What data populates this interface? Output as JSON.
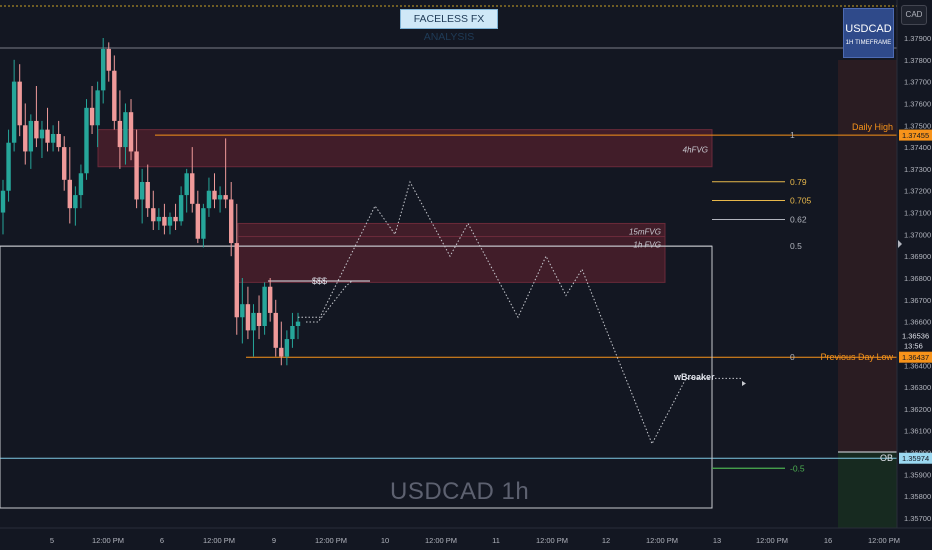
{
  "header": {
    "title_box": "FACELESS FX ANALYSIS",
    "symbol_badge": {
      "symbol": "USDCAD",
      "timeframe": "1H TIMEFRAME"
    },
    "currency_button": "CAD"
  },
  "watermark": "USDCAD 1h",
  "colors": {
    "background": "#131722",
    "bull": "#26a69a",
    "bear": "#ef9a9a",
    "fvg_zone": "#5c1f2e",
    "orange_line": "#f7931a",
    "gold_fib": "#e8b84b",
    "ob_line": "#7ec8e3"
  },
  "chart_data": {
    "type": "candlestick",
    "symbol": "USDCAD",
    "timeframe": "1h",
    "y_axis": {
      "range": [
        1.3565,
        1.381
      ],
      "ticks": [
        "1.37900",
        "1.37800",
        "1.37700",
        "1.37600",
        "1.37500",
        "1.37400",
        "1.37300",
        "1.37200",
        "1.37100",
        "1.37000",
        "1.36900",
        "1.36800",
        "1.36700",
        "1.36600",
        "1.36500",
        "1.36400",
        "1.36300",
        "1.36200",
        "1.36100",
        "1.36000",
        "1.35900",
        "1.35800",
        "1.35700"
      ]
    },
    "x_axis": {
      "ticks": [
        "5",
        "12:00 PM",
        "6",
        "12:00 PM",
        "9",
        "12:00 PM",
        "10",
        "12:00 PM",
        "11",
        "12:00 PM",
        "12",
        "12:00 PM",
        "13",
        "12:00 PM",
        "16",
        "12:00 PM"
      ]
    },
    "price_labels": [
      {
        "text": "1.37455",
        "value": 1.37455,
        "color": "#f7931a"
      },
      {
        "text": "1.36536",
        "value": 1.36536,
        "color": "#131722",
        "sub": "13:56"
      },
      {
        "text": "1.36437",
        "value": 1.36437,
        "color": "#f7931a"
      },
      {
        "text": "1.35974",
        "value": 1.35974,
        "color": "#9bd8f0"
      }
    ],
    "levels": [
      {
        "name": "Daily High",
        "value": 1.37455
      },
      {
        "name": "Previous Day Low",
        "value": 1.36437
      },
      {
        "name": "OB",
        "value": 1.35974
      }
    ],
    "fib_levels": [
      {
        "label": "1",
        "value": 1.37455
      },
      {
        "label": "0.79",
        "value": 1.37241
      },
      {
        "label": "0.705",
        "value": 1.37155
      },
      {
        "label": "0.62",
        "value": 1.37068
      },
      {
        "label": "0.5",
        "value": 1.36946
      },
      {
        "label": "0",
        "value": 1.36437
      },
      {
        "label": "-0.5",
        "value": 1.35928
      }
    ],
    "zones": [
      {
        "label": "4hFVG",
        "top": 1.3748,
        "bottom": 1.3731
      },
      {
        "label": "15mFVG",
        "top": 1.3705,
        "bottom": 1.3699
      },
      {
        "label": "1h FVG",
        "top": 1.3699,
        "bottom": 1.3678
      }
    ],
    "annotations": [
      "$$$",
      "wBreaker"
    ],
    "candles": [
      [
        1.371,
        1.3725,
        1.37,
        1.372
      ],
      [
        1.372,
        1.3748,
        1.3715,
        1.3742
      ],
      [
        1.3742,
        1.378,
        1.3738,
        1.377
      ],
      [
        1.377,
        1.3778,
        1.3745,
        1.375
      ],
      [
        1.375,
        1.376,
        1.3732,
        1.3738
      ],
      [
        1.3738,
        1.3755,
        1.373,
        1.3752
      ],
      [
        1.3752,
        1.3768,
        1.374,
        1.3744
      ],
      [
        1.3744,
        1.3752,
        1.3735,
        1.3748
      ],
      [
        1.3748,
        1.3758,
        1.3738,
        1.3742
      ],
      [
        1.3742,
        1.375,
        1.3738,
        1.3746
      ],
      [
        1.3746,
        1.3752,
        1.3738,
        1.374
      ],
      [
        1.374,
        1.3745,
        1.372,
        1.3725
      ],
      [
        1.3725,
        1.374,
        1.3705,
        1.3712
      ],
      [
        1.3712,
        1.3722,
        1.3704,
        1.3718
      ],
      [
        1.3718,
        1.3732,
        1.3712,
        1.3728
      ],
      [
        1.3728,
        1.3762,
        1.3725,
        1.3758
      ],
      [
        1.3758,
        1.3768,
        1.3746,
        1.375
      ],
      [
        1.375,
        1.377,
        1.374,
        1.3766
      ],
      [
        1.3766,
        1.379,
        1.376,
        1.3785
      ],
      [
        1.3785,
        1.3788,
        1.377,
        1.3775
      ],
      [
        1.3775,
        1.3782,
        1.3748,
        1.3752
      ],
      [
        1.3752,
        1.3766,
        1.373,
        1.374
      ],
      [
        1.374,
        1.376,
        1.3732,
        1.3756
      ],
      [
        1.3756,
        1.3762,
        1.3734,
        1.3738
      ],
      [
        1.3738,
        1.3748,
        1.3712,
        1.3716
      ],
      [
        1.3716,
        1.373,
        1.3705,
        1.3724
      ],
      [
        1.3724,
        1.3732,
        1.3708,
        1.3712
      ],
      [
        1.3712,
        1.372,
        1.3702,
        1.3706
      ],
      [
        1.3706,
        1.3712,
        1.3702,
        1.3708
      ],
      [
        1.3708,
        1.3714,
        1.37,
        1.3704
      ],
      [
        1.3704,
        1.371,
        1.37,
        1.3708
      ],
      [
        1.3708,
        1.3714,
        1.3702,
        1.3706
      ],
      [
        1.3706,
        1.3722,
        1.3704,
        1.3718
      ],
      [
        1.3718,
        1.373,
        1.371,
        1.3728
      ],
      [
        1.3728,
        1.374,
        1.371,
        1.3714
      ],
      [
        1.3714,
        1.372,
        1.3696,
        1.3698
      ],
      [
        1.3698,
        1.3714,
        1.3694,
        1.3712
      ],
      [
        1.3712,
        1.3726,
        1.3708,
        1.372
      ],
      [
        1.372,
        1.3728,
        1.3712,
        1.3716
      ],
      [
        1.3716,
        1.3722,
        1.371,
        1.3718
      ],
      [
        1.3718,
        1.3744,
        1.3712,
        1.3716
      ],
      [
        1.3716,
        1.3724,
        1.369,
        1.3696
      ],
      [
        1.3696,
        1.3714,
        1.3654,
        1.3662
      ],
      [
        1.3662,
        1.368,
        1.365,
        1.3668
      ],
      [
        1.3668,
        1.3676,
        1.3652,
        1.3656
      ],
      [
        1.3656,
        1.3668,
        1.3644,
        1.3664
      ],
      [
        1.3664,
        1.3672,
        1.3652,
        1.3658
      ],
      [
        1.3658,
        1.3678,
        1.3654,
        1.3676
      ],
      [
        1.3676,
        1.368,
        1.366,
        1.3664
      ],
      [
        1.3664,
        1.367,
        1.3644,
        1.3648
      ],
      [
        1.3648,
        1.366,
        1.364,
        1.3644
      ],
      [
        1.3644,
        1.3656,
        1.364,
        1.3652
      ],
      [
        1.3652,
        1.3664,
        1.3648,
        1.3658
      ],
      [
        1.3658,
        1.3664,
        1.3652,
        1.366
      ]
    ],
    "projection_path": [
      [
        1.3662,
        1.3662
      ],
      [
        1.3685,
        1.37
      ],
      [
        1.3715,
        1.37
      ],
      [
        1.3724,
        1.3695
      ],
      [
        1.3705,
        1.3688
      ],
      [
        1.3702,
        1.3682
      ],
      [
        1.3662,
        1.369
      ],
      [
        1.3682,
        1.3672
      ],
      [
        1.3688,
        1.3655
      ],
      [
        1.3605,
        1.3625
      ],
      [
        1.3635,
        1.3635
      ]
    ]
  }
}
